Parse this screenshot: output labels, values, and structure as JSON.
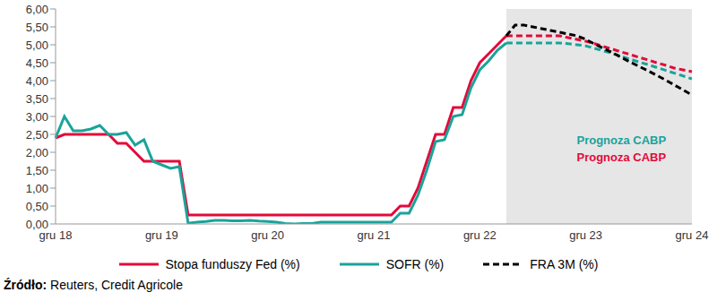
{
  "chart_data": {
    "type": "line",
    "categories": [
      "gru 18",
      null,
      null,
      null,
      null,
      null,
      null,
      null,
      null,
      null,
      null,
      null,
      "gru 19",
      null,
      null,
      null,
      null,
      null,
      null,
      null,
      null,
      null,
      null,
      null,
      "gru 20",
      null,
      null,
      null,
      null,
      null,
      null,
      null,
      null,
      null,
      null,
      null,
      "gru 21",
      null,
      null,
      null,
      null,
      null,
      null,
      null,
      null,
      null,
      null,
      null,
      "gru 22",
      null,
      null,
      null,
      null,
      null,
      null,
      null,
      null,
      null,
      null,
      null,
      "gru 23",
      null,
      null,
      null,
      null,
      null,
      null,
      null,
      null,
      null,
      null,
      null,
      "gru 24"
    ],
    "series": [
      {
        "name": "Stopa funduszy Fed (%)",
        "color": "#e30a3a",
        "line_style": "solid",
        "values": [
          2.4,
          2.5,
          2.5,
          2.5,
          2.5,
          2.5,
          2.5,
          2.25,
          2.25,
          2.0,
          1.75,
          1.75,
          1.75,
          1.75,
          1.75,
          0.25,
          0.25,
          0.25,
          0.25,
          0.25,
          0.25,
          0.25,
          0.25,
          0.25,
          0.25,
          0.25,
          0.25,
          0.25,
          0.25,
          0.25,
          0.25,
          0.25,
          0.25,
          0.25,
          0.25,
          0.25,
          0.25,
          0.25,
          0.25,
          0.5,
          0.5,
          1.0,
          1.75,
          2.5,
          2.5,
          3.25,
          3.25,
          4.0,
          4.5,
          4.75,
          5.0,
          5.25,
          5.25,
          5.25,
          5.25,
          5.25,
          5.25,
          5.25,
          5.2,
          5.15,
          5.1,
          5.03,
          4.95,
          4.88,
          4.8,
          4.73,
          4.65,
          4.58,
          4.5,
          4.43,
          4.35,
          4.3,
          4.25
        ]
      },
      {
        "name": "SOFR (%)",
        "color": "#1aa39a",
        "line_style": "solid",
        "values": [
          2.4,
          3.0,
          2.6,
          2.6,
          2.65,
          2.75,
          2.5,
          2.5,
          2.55,
          2.2,
          2.35,
          1.75,
          1.65,
          1.55,
          1.6,
          0.02,
          0.05,
          0.07,
          0.1,
          0.1,
          0.09,
          0.09,
          0.1,
          0.08,
          0.07,
          0.05,
          0.01,
          0.0,
          0.01,
          0.01,
          0.05,
          0.05,
          0.05,
          0.05,
          0.05,
          0.05,
          0.05,
          0.05,
          0.05,
          0.3,
          0.3,
          0.8,
          1.5,
          2.3,
          2.35,
          3.0,
          3.05,
          3.8,
          4.3,
          4.55,
          4.85,
          5.05,
          5.05,
          5.05,
          5.05,
          5.05,
          5.05,
          5.05,
          5.03,
          5.0,
          4.97,
          4.9,
          4.83,
          4.76,
          4.68,
          4.6,
          4.52,
          4.45,
          4.37,
          4.29,
          4.21,
          4.13,
          4.05
        ]
      },
      {
        "name": "FRA 3M (%)",
        "color": "#000000",
        "line_style": "dashed",
        "values": [
          null,
          null,
          null,
          null,
          null,
          null,
          null,
          null,
          null,
          null,
          null,
          null,
          null,
          null,
          null,
          null,
          null,
          null,
          null,
          null,
          null,
          null,
          null,
          null,
          null,
          null,
          null,
          null,
          null,
          null,
          null,
          null,
          null,
          null,
          null,
          null,
          null,
          null,
          null,
          null,
          null,
          null,
          null,
          null,
          null,
          null,
          null,
          null,
          null,
          null,
          null,
          5.25,
          5.55,
          5.55,
          5.5,
          5.45,
          5.4,
          5.35,
          5.3,
          5.25,
          5.15,
          5.02,
          4.9,
          4.78,
          4.65,
          4.52,
          4.4,
          4.28,
          4.15,
          4.02,
          3.88,
          3.74,
          3.6
        ]
      }
    ],
    "ylim": [
      0,
      6
    ],
    "yticks": [
      {
        "value": 0,
        "label": "0,00"
      },
      {
        "value": 0.5,
        "label": "0,50"
      },
      {
        "value": 1,
        "label": "1,00"
      },
      {
        "value": 1.5,
        "label": "1,50"
      },
      {
        "value": 2,
        "label": "2,00"
      },
      {
        "value": 2.5,
        "label": "2,50"
      },
      {
        "value": 3,
        "label": "3,00"
      },
      {
        "value": 3.5,
        "label": "3,50"
      },
      {
        "value": 4,
        "label": "4,00"
      },
      {
        "value": 4.5,
        "label": "4,50"
      },
      {
        "value": 5,
        "label": "5,00"
      },
      {
        "value": 5.5,
        "label": "5,50"
      },
      {
        "value": 6,
        "label": "6,00"
      }
    ],
    "grid": false,
    "legend": "bottom",
    "shaded_x": [
      51,
      72
    ],
    "annotations": [
      {
        "text": "Prognoza CABP",
        "color": "#1aa39a"
      },
      {
        "text": "Prognoza CABP",
        "color": "#e30a3a"
      }
    ],
    "source": "Źródło: Reuters, Credit Agricole"
  }
}
